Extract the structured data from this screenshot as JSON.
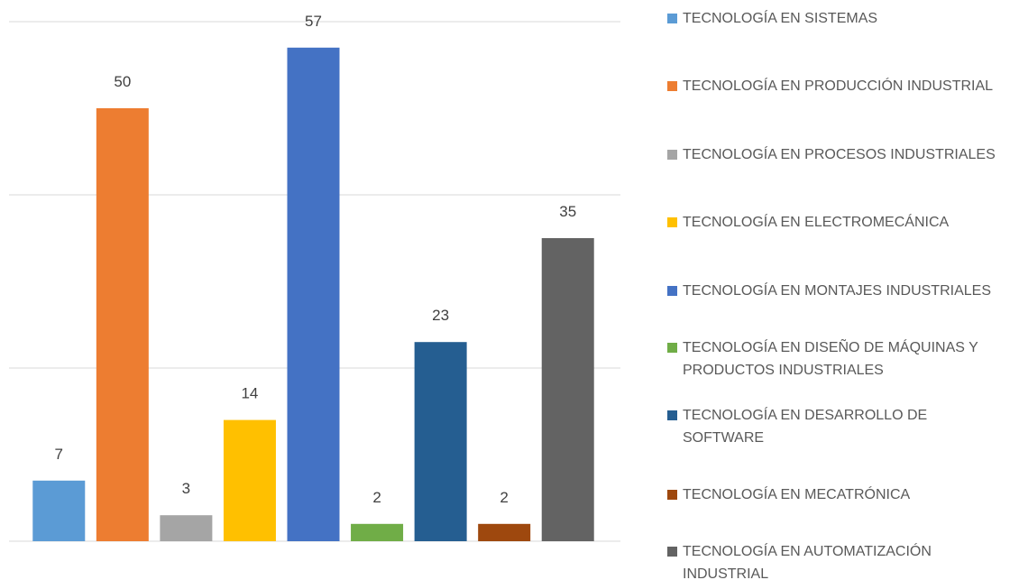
{
  "chart_data": {
    "type": "bar",
    "categories": [
      "TECNOLOGÍA EN SISTEMAS",
      "TECNOLOGÍA EN PRODUCCIÓN INDUSTRIAL",
      "TECNOLOGÍA EN PROCESOS INDUSTRIALES",
      "TECNOLOGÍA EN ELECTROMECÁNICA",
      "TECNOLOGÍA EN MONTAJES INDUSTRIALES",
      "TECNOLOGÍA EN DISEÑO DE MÁQUINAS Y PRODUCTOS INDUSTRIALES",
      "TECNOLOGÍA EN DESARROLLO DE SOFTWARE",
      "TECNOLOGÍA EN MECATRÓNICA",
      "TECNOLOGÍA EN AUTOMATIZACIÓN INDUSTRIAL"
    ],
    "values": [
      7,
      50,
      3,
      14,
      57,
      2,
      23,
      2,
      35
    ],
    "colors": [
      "#5b9bd5",
      "#ed7d31",
      "#a5a5a5",
      "#ffc000",
      "#4472c4",
      "#70ad47",
      "#255e91",
      "#9e480e",
      "#636363"
    ],
    "ylim": [
      0,
      60
    ],
    "yticks": [
      0,
      20,
      40,
      60
    ],
    "grid": true,
    "legend": "right"
  }
}
